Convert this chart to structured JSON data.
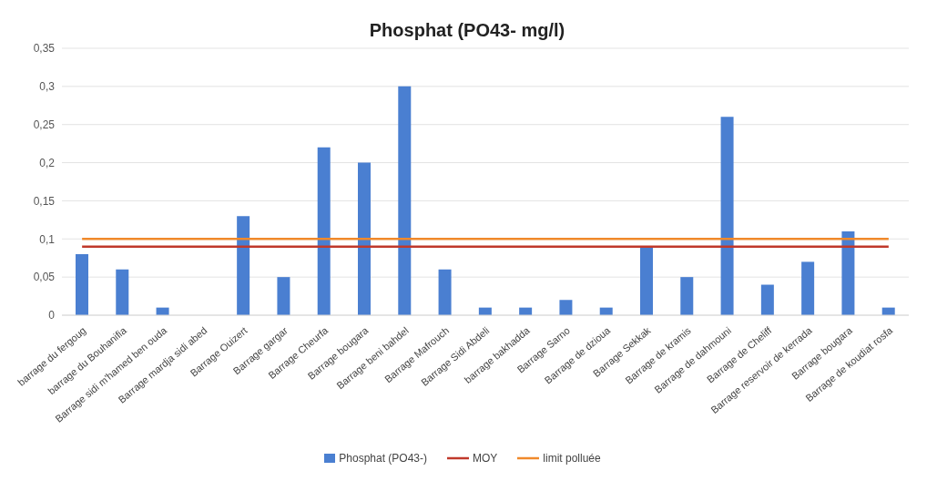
{
  "chart_data": {
    "type": "bar",
    "title": "Phosphat (PO43- mg/l)",
    "categories": [
      "barrage du fergoug",
      "barrage du Bouhanifia",
      "Barrage sidi m'hamed ben ouda",
      "Barrage mardja sidi abed",
      "Barrage Ouizert",
      "Barrage gargar",
      "Barrage Cheurfa",
      "Barrage bougara",
      "Barrage beni bahdel",
      "Barrage Mafrouch",
      "Barrage Sidi Abdeli",
      "barrage bakhadda",
      "Barrage Sarno",
      "Barrage de dzioua",
      "Barrage Sekkak",
      "Barrage de kramis",
      "Barrage de dahmouni",
      "Barrage de Cheliff",
      "Barrage reservoir de kerrada",
      "Barrage bougara",
      "Barrage de koudiat rosfa"
    ],
    "series": [
      {
        "name": "Phosphat (PO43-)",
        "color": "#4a7fd1",
        "values": [
          0.08,
          0.06,
          0.01,
          0,
          0.13,
          0.05,
          0.22,
          0.2,
          0.3,
          0.06,
          0.01,
          0.01,
          0.02,
          0.01,
          0.09,
          0.05,
          0.26,
          0.04,
          0.07,
          0.11,
          0.01
        ]
      },
      {
        "name": "MOY",
        "type": "line",
        "color": "#c0392b",
        "values": [
          0.09,
          0.09,
          0.09,
          0.09,
          0.09,
          0.09,
          0.09,
          0.09,
          0.09,
          0.09,
          0.09,
          0.09,
          0.09,
          0.09,
          0.09,
          0.09,
          0.09,
          0.09,
          0.09,
          0.09,
          0.09
        ]
      },
      {
        "name": "limit polluée",
        "type": "line",
        "color": "#f0892b",
        "values": [
          0.1,
          0.1,
          0.1,
          0.1,
          0.1,
          0.1,
          0.1,
          0.1,
          0.1,
          0.1,
          0.1,
          0.1,
          0.1,
          0.1,
          0.1,
          0.1,
          0.1,
          0.1,
          0.1,
          0.1,
          0.1
        ]
      }
    ],
    "ylim": [
      0,
      0.35
    ],
    "yticks": [
      {
        "value": 0,
        "label": "0"
      },
      {
        "value": 0.05,
        "label": "0,05"
      },
      {
        "value": 0.1,
        "label": "0,1"
      },
      {
        "value": 0.15,
        "label": "0,15"
      },
      {
        "value": 0.2,
        "label": "0,2"
      },
      {
        "value": 0.25,
        "label": "0,25"
      },
      {
        "value": 0.3,
        "label": "0,3"
      },
      {
        "value": 0.35,
        "label": "0,35"
      }
    ],
    "grid": "y",
    "legend": "bottom",
    "marker": "none"
  }
}
